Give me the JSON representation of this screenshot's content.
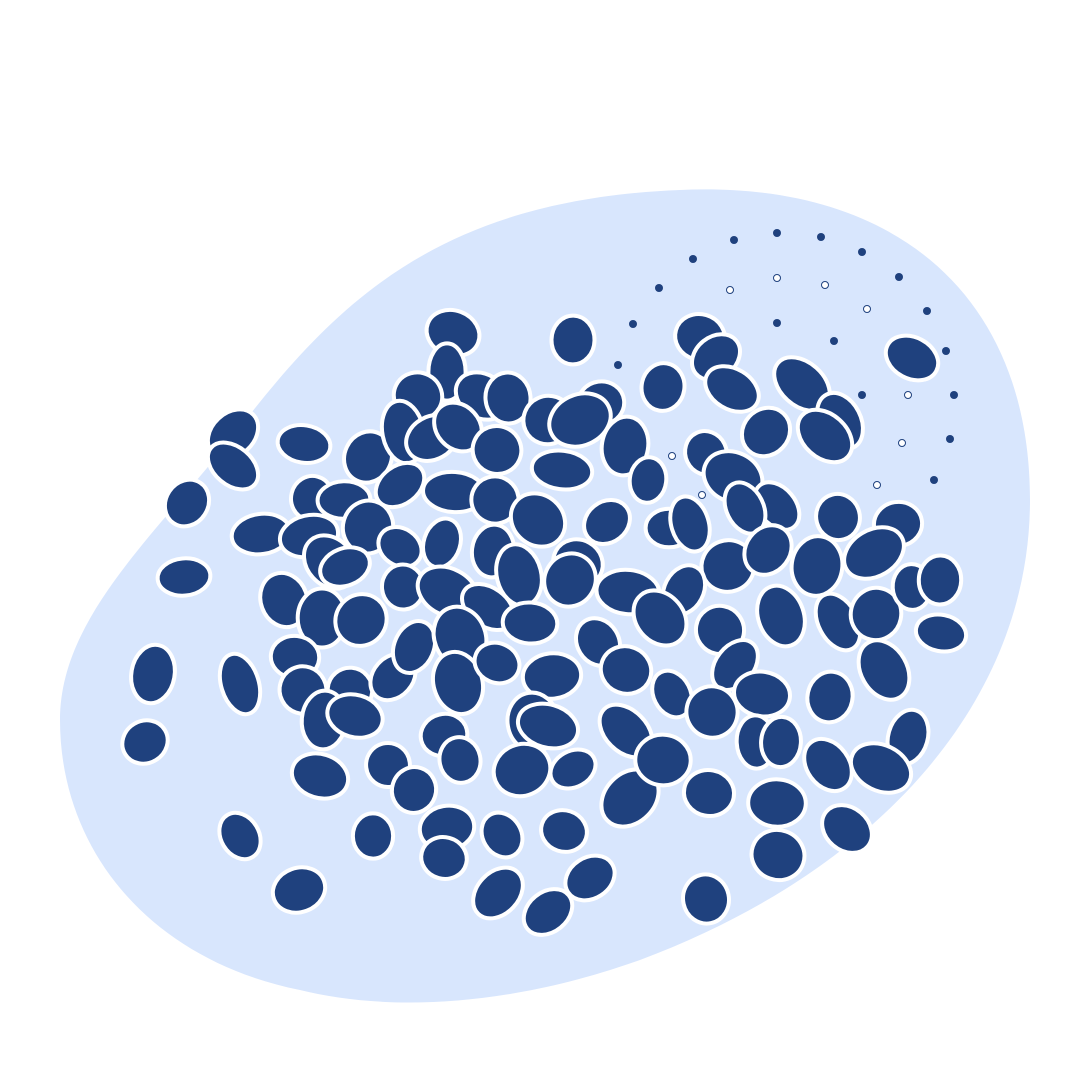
{
  "illustration": {
    "colors": {
      "background": "#ffffff",
      "blob": "#d8e6fd",
      "particle_fill": "#1f417e",
      "particle_stroke": "#ffffff"
    }
  }
}
